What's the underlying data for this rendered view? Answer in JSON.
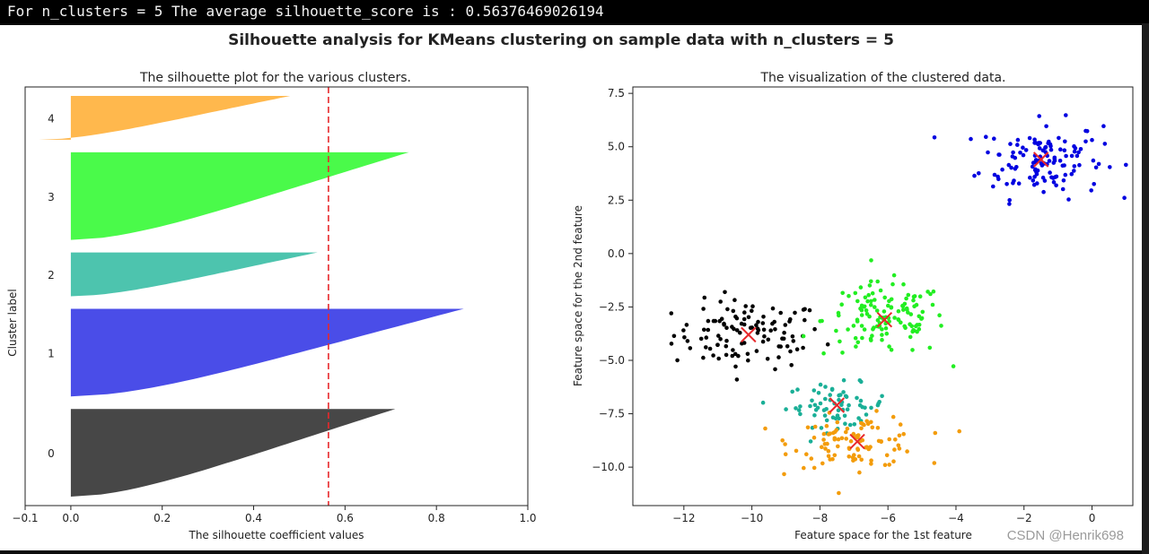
{
  "console": {
    "output": "For n_clusters = 5 The average silhouette_score is : 0.56376469026194"
  },
  "figure": {
    "suptitle": "Silhouette analysis for KMeans clustering on sample data with n_clusters = 5"
  },
  "watermark": "CSDN @Henrik698",
  "chart_data": [
    {
      "type": "area",
      "title": "The silhouette plot for the various clusters.",
      "xlabel": "The silhouette coefficient values",
      "ylabel": "Cluster label",
      "xlim": [
        -0.1,
        1.0
      ],
      "xticks": [
        -0.1,
        0.0,
        0.2,
        0.4,
        0.6,
        0.8,
        1.0
      ],
      "xtick_labels": [
        "−0.1",
        "0.0",
        "0.2",
        "0.4",
        "0.6",
        "0.8",
        "1.0"
      ],
      "average_silhouette_score": 0.56376469026194,
      "average_line_color": "#e8282b",
      "clusters": [
        {
          "label": "0",
          "color": "#474747",
          "size": 100,
          "max": 0.71,
          "min": 0.0
        },
        {
          "label": "1",
          "color": "#4a4de8",
          "size": 100,
          "max": 0.86,
          "min": 0.0
        },
        {
          "label": "2",
          "color": "#4dc4ae",
          "size": 50,
          "max": 0.54,
          "min": 0.0
        },
        {
          "label": "3",
          "color": "#4afa4a",
          "size": 100,
          "max": 0.74,
          "min": 0.0
        },
        {
          "label": "4",
          "color": "#ffb84d",
          "size": 50,
          "max": 0.48,
          "min": -0.07
        }
      ]
    },
    {
      "type": "scatter",
      "title": "The visualization of the clustered data.",
      "xlabel": "Feature space for the 1st feature",
      "ylabel": "Feature space for the 2nd feature",
      "xlim": [
        -13.5,
        1.2
      ],
      "ylim": [
        -11.8,
        7.8
      ],
      "xticks": [
        -12,
        -10,
        -8,
        -6,
        -4,
        -2,
        0
      ],
      "xtick_labels": [
        "−12",
        "−10",
        "−8",
        "−6",
        "−4",
        "−2",
        "0"
      ],
      "yticks": [
        7.5,
        5.0,
        2.5,
        0.0,
        -2.5,
        -5.0,
        -7.5,
        -10.0
      ],
      "ytick_labels": [
        "7.5",
        "5.0",
        "2.5",
        "0.0",
        "−2.5",
        "−5.0",
        "−7.5",
        "−10.0"
      ],
      "center_marker": "x",
      "center_color": "#e8282b",
      "clusters": [
        {
          "label": "0",
          "color": "#000000",
          "center": [
            -10.1,
            -3.8
          ],
          "spread": [
            1.1,
            0.8
          ],
          "count": 110
        },
        {
          "label": "1",
          "color": "#0000e0",
          "center": [
            -1.5,
            4.4
          ],
          "spread": [
            0.9,
            0.9
          ],
          "count": 130
        },
        {
          "label": "2",
          "color": "#1aaf97",
          "center": [
            -7.5,
            -7.1
          ],
          "spread": [
            0.75,
            0.5
          ],
          "count": 70
        },
        {
          "label": "3",
          "color": "#22ee22",
          "center": [
            -6.1,
            -3.1
          ],
          "spread": [
            0.9,
            0.85
          ],
          "count": 130
        },
        {
          "label": "4",
          "color": "#f39c0b",
          "center": [
            -6.9,
            -8.8
          ],
          "spread": [
            0.95,
            0.6
          ],
          "count": 100
        }
      ]
    }
  ]
}
